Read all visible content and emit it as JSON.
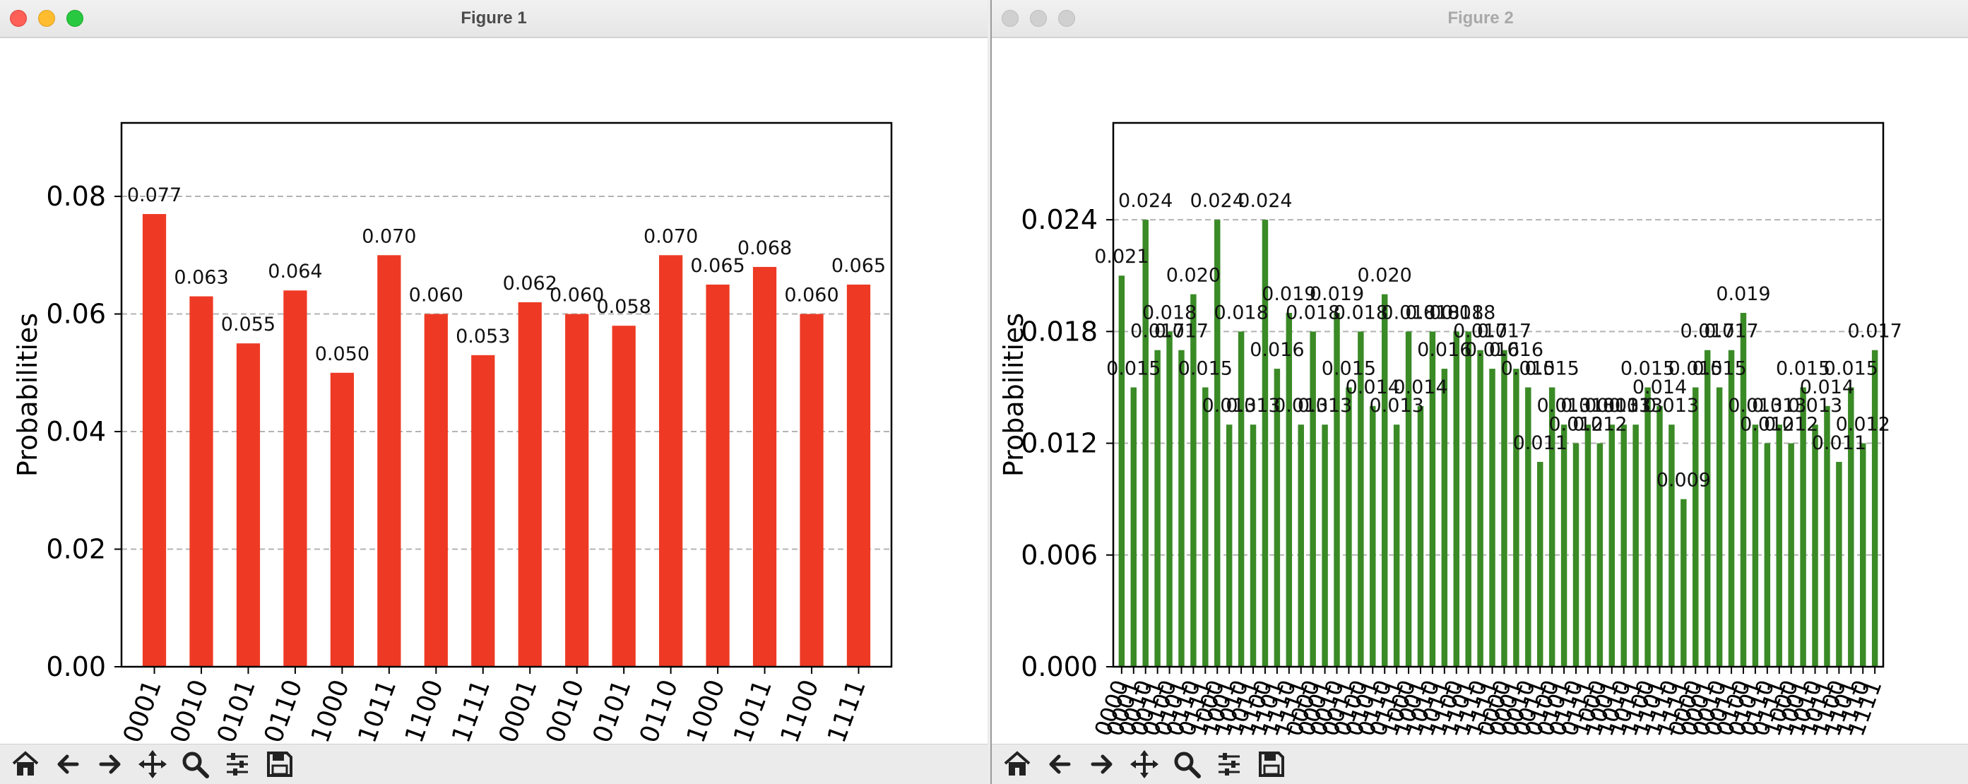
{
  "windows": [
    {
      "title": "Figure 1",
      "chart_data": {
        "type": "bar",
        "color": "#ee3a24",
        "ylabel": "Probabilities",
        "ylim": [
          0,
          0.0925
        ],
        "yticks": [
          "0.00",
          "0.02",
          "0.04",
          "0.06",
          "0.08"
        ],
        "ytick_values": [
          0,
          0.02,
          0.04,
          0.06,
          0.08
        ],
        "grid": "horizontal dashed",
        "categories": [
          "0001",
          "0010",
          "0101",
          "0110",
          "1000",
          "1011",
          "1100",
          "1111",
          "0001",
          "0010",
          "0101",
          "0110",
          "1000",
          "1011",
          "1100",
          "1111"
        ],
        "values": [
          0.077,
          0.063,
          0.055,
          0.064,
          0.05,
          0.07,
          0.06,
          0.053,
          0.062,
          0.06,
          0.058,
          0.07,
          0.065,
          0.068,
          0.06,
          0.065
        ],
        "data_labels": [
          "0.077",
          "0.063",
          "0.055",
          "0.064",
          "0.050",
          "0.070",
          "0.060",
          "0.053",
          "0.062",
          "0.060",
          "0.058",
          "0.070",
          "0.065",
          "0.068",
          "0.060",
          "0.065"
        ]
      }
    },
    {
      "title": "Figure 2",
      "chart_data": {
        "type": "bar",
        "color": "#3a8a26",
        "ylabel": "Probabilities",
        "ylim": [
          0,
          0.0292
        ],
        "yticks": [
          "0.000",
          "0.006",
          "0.012",
          "0.018",
          "0.024"
        ],
        "ytick_values": [
          0,
          0.006,
          0.012,
          0.018,
          0.024
        ],
        "grid": "horizontal dashed",
        "categories": [
          "0000",
          "0001",
          "0010",
          "0011",
          "0100",
          "0101",
          "0110",
          "0111",
          "1000",
          "1001",
          "1010",
          "1011",
          "1100",
          "1101",
          "1110",
          "1111",
          "0000",
          "0001",
          "0010",
          "0011",
          "0100",
          "0101",
          "0110",
          "0111",
          "1000",
          "1001",
          "1010",
          "1011",
          "1100",
          "1101",
          "1110",
          "1111",
          "0000",
          "0001",
          "0010",
          "0011",
          "0100",
          "0101",
          "0110",
          "0111",
          "1000",
          "1001",
          "1010",
          "1011",
          "1100",
          "1101",
          "1110",
          "1111",
          "0000",
          "0001",
          "0010",
          "0011",
          "0100",
          "0101",
          "0110",
          "0111",
          "1000",
          "1001",
          "1010",
          "1011",
          "1100",
          "1101",
          "1110",
          "1111"
        ],
        "values": [
          0.021,
          0.015,
          0.024,
          0.017,
          0.018,
          0.017,
          0.02,
          0.015,
          0.024,
          0.013,
          0.018,
          0.013,
          0.024,
          0.016,
          0.019,
          0.013,
          0.018,
          0.013,
          0.019,
          0.015,
          0.018,
          0.014,
          0.02,
          0.013,
          0.018,
          0.014,
          0.018,
          0.016,
          0.018,
          0.018,
          0.017,
          0.016,
          0.017,
          0.016,
          0.015,
          0.011,
          0.015,
          0.013,
          0.012,
          0.013,
          0.012,
          0.013,
          0.013,
          0.013,
          0.015,
          0.014,
          0.013,
          0.009,
          0.015,
          0.017,
          0.015,
          0.017,
          0.019,
          0.013,
          0.012,
          0.013,
          0.012,
          0.015,
          0.013,
          0.014,
          0.011,
          0.015,
          0.012,
          0.017
        ],
        "data_labels": [
          "0.021",
          "0.015",
          "0.024",
          "0.017",
          "0.018",
          "0.017",
          "0.020",
          "0.015",
          "0.024",
          "0.013",
          "0.018",
          "0.013",
          "0.024",
          "0.016",
          "0.019",
          "0.013",
          "0.018",
          "0.013",
          "0.019",
          "0.015",
          "0.018",
          "0.014",
          "0.020",
          "0.013",
          "0.018",
          "0.014",
          "0.018",
          "0.016",
          "0.018",
          "0.018",
          "0.017",
          "0.016",
          "0.017",
          "0.016",
          "0.015",
          "0.011",
          "0.015",
          "0.013",
          "0.012",
          "0.013",
          "0.012",
          "0.013",
          "0.013",
          "0.013",
          "0.015",
          "0.014",
          "0.013",
          "0.009",
          "0.015",
          "0.017",
          "0.015",
          "0.017",
          "0.019",
          "0.013",
          "0.012",
          "0.013",
          "0.012",
          "0.015",
          "0.013",
          "0.014",
          "0.011",
          "0.015",
          "0.012",
          "0.017"
        ]
      }
    }
  ],
  "toolbar": {
    "buttons": [
      {
        "name": "home-button",
        "icon": "home-icon"
      },
      {
        "name": "back-button",
        "icon": "arrow-left-icon"
      },
      {
        "name": "forward-button",
        "icon": "arrow-right-icon"
      },
      {
        "name": "pan-button",
        "icon": "move-icon"
      },
      {
        "name": "zoom-button",
        "icon": "magnifier-icon"
      },
      {
        "name": "configure-subplots-button",
        "icon": "sliders-icon"
      },
      {
        "name": "save-button",
        "icon": "floppy-disk-icon"
      }
    ]
  }
}
